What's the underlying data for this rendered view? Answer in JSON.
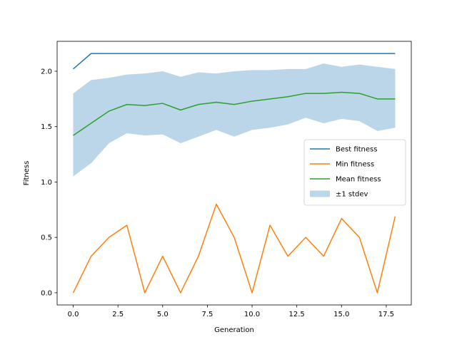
{
  "chart_data": {
    "type": "line",
    "xlabel": "Generation",
    "ylabel": "Fitness",
    "xlim": [
      -0.9,
      18.9
    ],
    "ylim": [
      -0.11,
      2.27
    ],
    "xticks": [
      0.0,
      2.5,
      5.0,
      7.5,
      10.0,
      12.5,
      15.0,
      17.5
    ],
    "xtick_labels": [
      "0.0",
      "2.5",
      "5.0",
      "7.5",
      "10.0",
      "12.5",
      "15.0",
      "17.5"
    ],
    "yticks": [
      0.0,
      0.5,
      1.0,
      1.5,
      2.0
    ],
    "ytick_labels": [
      "0.0",
      "0.5",
      "1.0",
      "1.5",
      "2.0"
    ],
    "grid": false,
    "legend_position": "center-right",
    "x": [
      0,
      1,
      2,
      3,
      4,
      5,
      6,
      7,
      8,
      9,
      10,
      11,
      12,
      13,
      14,
      15,
      16,
      17,
      18
    ],
    "series": [
      {
        "name": "Best fitness",
        "color": "#1f77b4",
        "values": [
          2.02,
          2.16,
          2.16,
          2.16,
          2.16,
          2.16,
          2.16,
          2.16,
          2.16,
          2.16,
          2.16,
          2.16,
          2.16,
          2.16,
          2.16,
          2.16,
          2.16,
          2.16,
          2.16
        ]
      },
      {
        "name": "Min fitness",
        "color": "#ff7f0e",
        "values": [
          0.0,
          0.33,
          0.5,
          0.61,
          0.0,
          0.33,
          0.0,
          0.33,
          0.8,
          0.5,
          0.0,
          0.61,
          0.33,
          0.5,
          0.33,
          0.67,
          0.5,
          0.0,
          0.69
        ]
      },
      {
        "name": "Mean fitness",
        "color": "#2ca02c",
        "values": [
          1.42,
          1.53,
          1.64,
          1.7,
          1.69,
          1.71,
          1.65,
          1.7,
          1.72,
          1.7,
          1.73,
          1.75,
          1.77,
          1.8,
          1.8,
          1.81,
          1.8,
          1.75,
          1.75
        ]
      }
    ],
    "band": {
      "name": "±1 stdev",
      "color": "#1f77b4",
      "opacity": 0.3,
      "upper": [
        1.8,
        1.92,
        1.94,
        1.97,
        1.98,
        2.0,
        1.95,
        1.99,
        1.98,
        2.0,
        2.01,
        2.01,
        2.02,
        2.02,
        2.07,
        2.04,
        2.06,
        2.04,
        2.02
      ],
      "lower": [
        1.05,
        1.17,
        1.35,
        1.44,
        1.42,
        1.43,
        1.35,
        1.41,
        1.47,
        1.41,
        1.47,
        1.49,
        1.52,
        1.58,
        1.53,
        1.57,
        1.55,
        1.46,
        1.49
      ]
    },
    "legend": [
      "Best fitness",
      "Min fitness",
      "Mean fitness",
      "±1 stdev"
    ]
  }
}
